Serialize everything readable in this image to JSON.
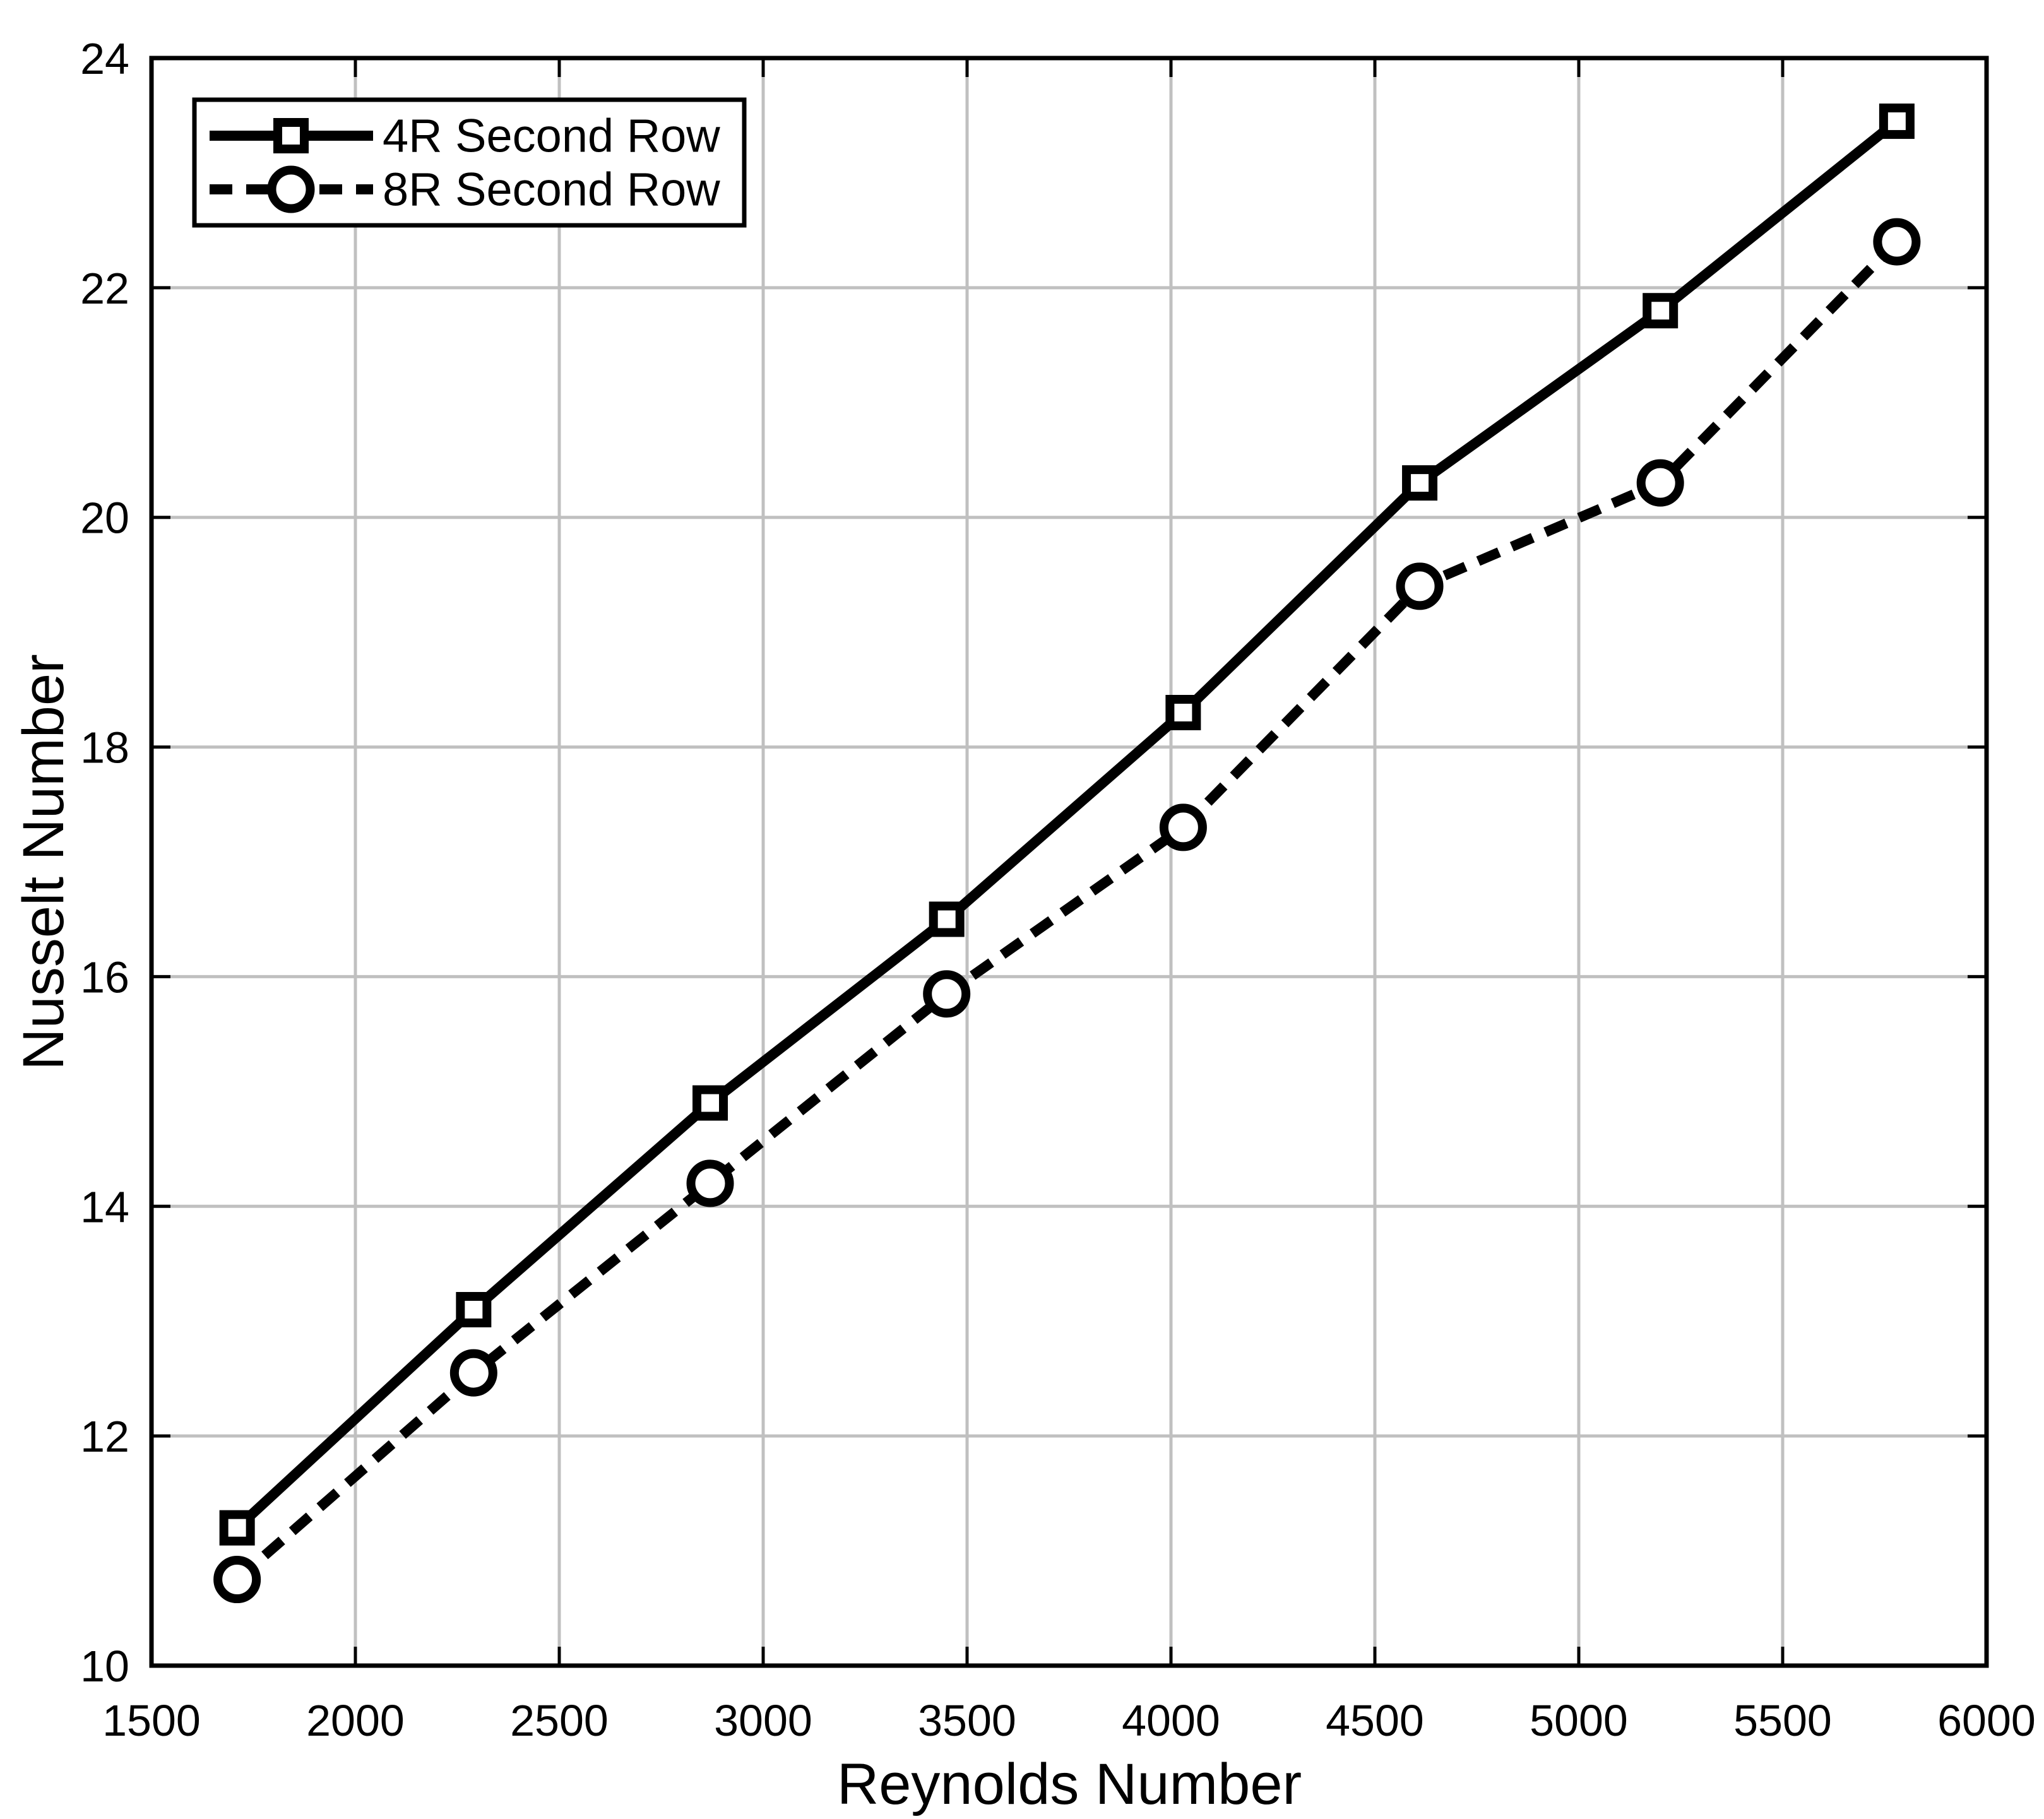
{
  "chart_data": {
    "type": "line",
    "title": "",
    "xlabel": "Reynolds Number",
    "ylabel": "Nusselt Number",
    "xlim": [
      1500,
      6000
    ],
    "ylim": [
      10,
      24
    ],
    "x_ticks": [
      1500,
      2000,
      2500,
      3000,
      3500,
      4000,
      4500,
      5000,
      5500,
      6000
    ],
    "y_ticks": [
      10,
      12,
      14,
      16,
      18,
      20,
      22,
      24
    ],
    "grid": true,
    "legend_position": "top-left",
    "x": [
      1710,
      2290,
      2870,
      3450,
      4030,
      4610,
      5200,
      5780
    ],
    "series": [
      {
        "name": "4R Second Row",
        "marker": "square",
        "line_style": "solid",
        "values": [
          11.2,
          13.1,
          14.9,
          16.5,
          18.3,
          20.3,
          21.8,
          23.45
        ]
      },
      {
        "name": "8R Second Row",
        "marker": "circle",
        "line_style": "dashed",
        "values": [
          10.75,
          12.55,
          14.2,
          15.85,
          17.3,
          19.4,
          20.3,
          22.4
        ]
      }
    ],
    "colors": {
      "line": "#000000",
      "grid": "#c0c0c0",
      "background": "#ffffff",
      "marker_fill": "#ffffff"
    }
  }
}
